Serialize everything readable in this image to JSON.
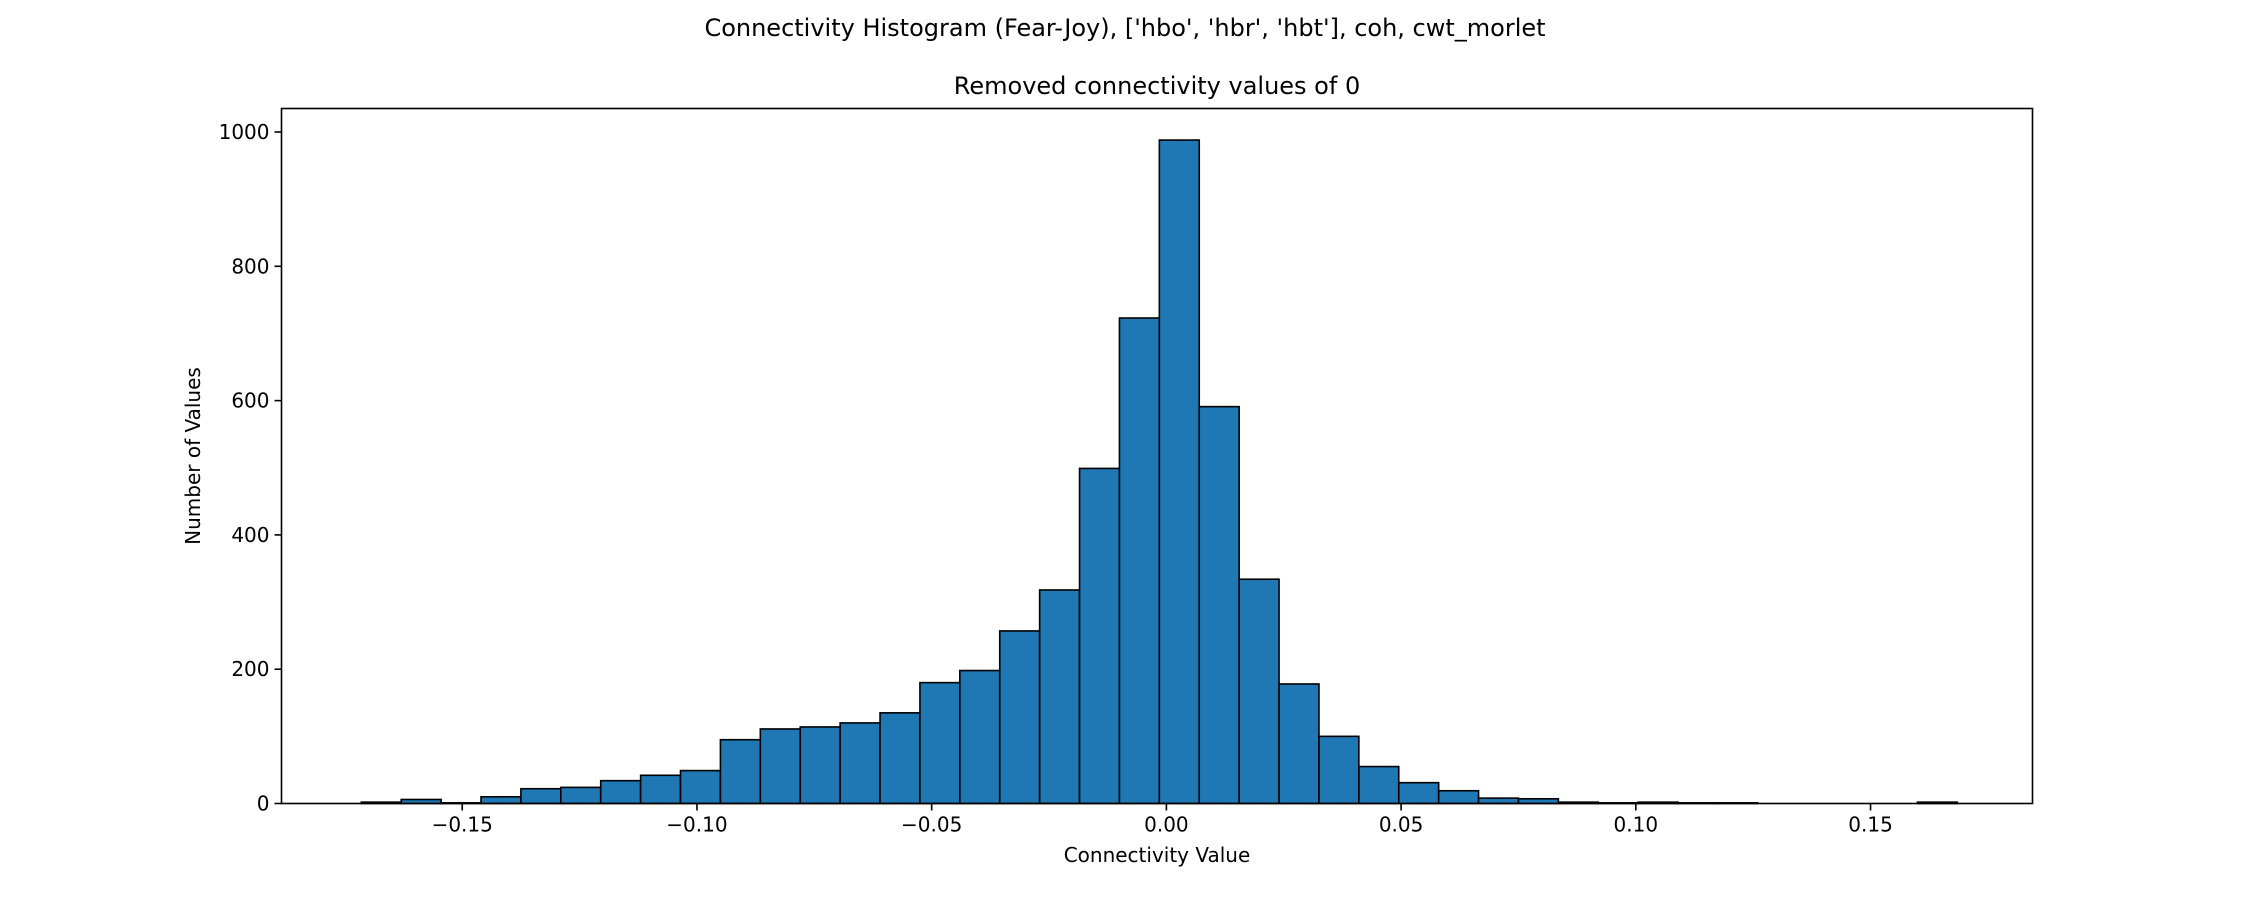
{
  "chart_data": {
    "type": "bar",
    "title": "Connectivity Histogram (Fear-Joy), ['hbo', 'hbr', 'hbt'], coh, cwt_morlet",
    "subtitle": "Removed connectivity values of 0",
    "xlabel": "Connectivity Value",
    "ylabel": "Number of Values",
    "xlim": [
      -0.1885,
      0.1845
    ],
    "ylim": [
      0,
      1035
    ],
    "xticks": [
      -0.15,
      -0.1,
      -0.05,
      0.0,
      0.05,
      0.1,
      0.15
    ],
    "xtick_labels": [
      "−0.15",
      "−0.10",
      "−0.05",
      "0.00",
      "0.05",
      "0.10",
      "0.15"
    ],
    "yticks": [
      0,
      200,
      400,
      600,
      800,
      1000
    ],
    "ytick_labels": [
      "0",
      "200",
      "400",
      "600",
      "800",
      "1000"
    ],
    "bin_start": -0.1715,
    "bin_width": 0.0085,
    "values": [
      2,
      6,
      1,
      10,
      22,
      24,
      34,
      42,
      49,
      95,
      111,
      114,
      120,
      135,
      180,
      198,
      257,
      318,
      499,
      723,
      988,
      591,
      334,
      178,
      100,
      55,
      31,
      19,
      8,
      7,
      2,
      1,
      2,
      1,
      1,
      0,
      0,
      0,
      0,
      2
    ],
    "bar_color": "#1f77b4",
    "edge_color": "#000000",
    "grid": false,
    "legend": "none"
  }
}
